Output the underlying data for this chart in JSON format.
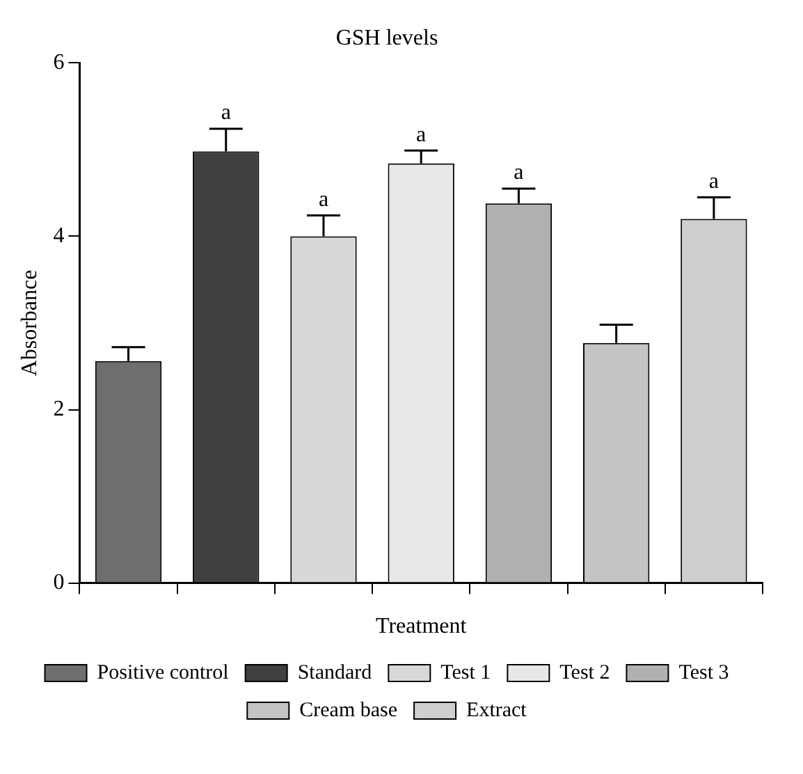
{
  "chart_data": {
    "type": "bar",
    "title": "GSH levels",
    "xlabel": "Treatment",
    "ylabel": "Absorbance",
    "categories": [
      null,
      null,
      null,
      null,
      null,
      null,
      null
    ],
    "series": [
      {
        "name": "Positive control",
        "color": "#6e6e6e",
        "values": [
          2.56,
          null,
          null,
          null,
          null,
          null,
          null
        ],
        "errors": [
          [
            2.56,
            2.72
          ],
          null,
          null,
          null,
          null,
          null,
          null
        ]
      },
      {
        "name": "Standard",
        "color": "#404040",
        "values": [
          null,
          4.98,
          null,
          null,
          null,
          null,
          null
        ],
        "errors": [
          null,
          [
            4.98,
            5.24
          ],
          null,
          null,
          null,
          null,
          null
        ]
      },
      {
        "name": "Test 1",
        "color": "#d8d8d8",
        "values": [
          null,
          null,
          4.0,
          null,
          null,
          null,
          null
        ],
        "errors": [
          null,
          null,
          [
            4.0,
            4.24
          ],
          null,
          null,
          null,
          null
        ]
      },
      {
        "name": "Test 2",
        "color": "#e8e8e8",
        "values": [
          null,
          null,
          null,
          4.84,
          null,
          null,
          null
        ],
        "errors": [
          null,
          null,
          null,
          [
            4.84,
            4.99
          ],
          null,
          null,
          null
        ]
      },
      {
        "name": "Test 3",
        "color": "#b0b0b0",
        "values": [
          null,
          null,
          null,
          null,
          4.38,
          null,
          null
        ],
        "errors": [
          null,
          null,
          null,
          null,
          [
            4.38,
            4.55
          ],
          null,
          null
        ]
      },
      {
        "name": "Cream base",
        "color": "#c4c4c4",
        "values": [
          null,
          null,
          null,
          null,
          null,
          2.77,
          null
        ],
        "errors": [
          null,
          null,
          null,
          null,
          null,
          [
            2.77,
            2.98
          ],
          null
        ]
      },
      {
        "name": "Extract",
        "color": "#cfcfcf",
        "values": [
          null,
          null,
          null,
          null,
          null,
          null,
          4.2
        ],
        "errors": [
          null,
          null,
          null,
          null,
          null,
          null,
          [
            4.2,
            4.45
          ]
        ]
      }
    ],
    "annotations": [
      {
        "text": "a",
        "y": 5.24
      },
      {
        "text": "a",
        "y": 4.24
      },
      {
        "text": "a",
        "y": 4.99
      },
      {
        "text": "a",
        "y": 4.55
      },
      {
        "text": "a",
        "y": 4.45
      }
    ],
    "ylim": [
      0,
      6
    ],
    "yticks": [
      0,
      2,
      4,
      6
    ],
    "grid": false,
    "legend": "bottom",
    "tick_labels": "y"
  }
}
